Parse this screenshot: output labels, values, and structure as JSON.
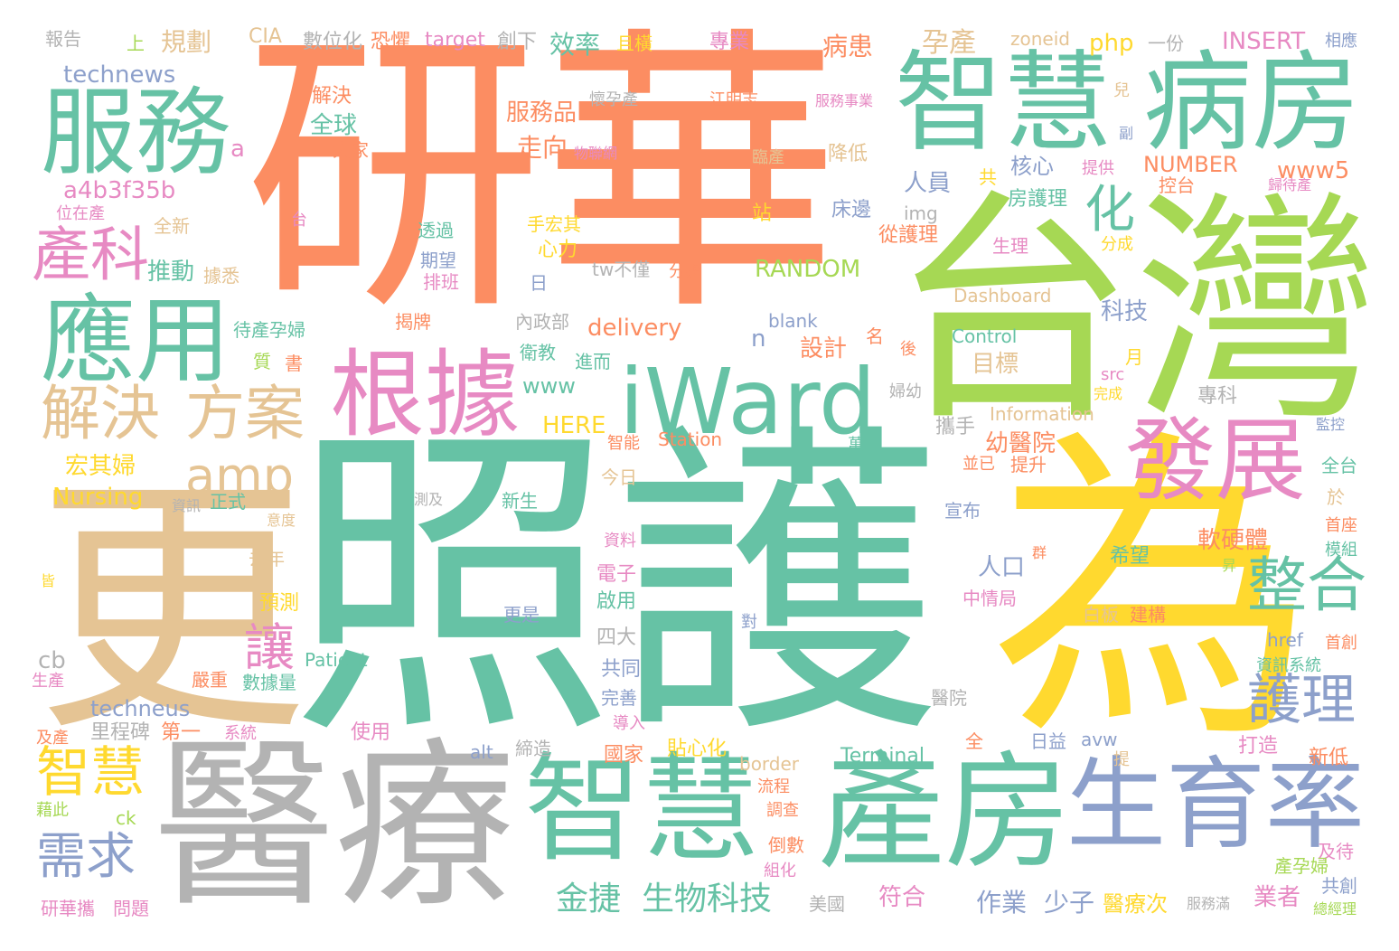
{
  "palette": {
    "orange": "#fc8d62",
    "green": "#66c2a5",
    "lime": "#a6d854",
    "yellow": "#ffd92f",
    "blue": "#8da0cb",
    "pink": "#e78ac3",
    "tan": "#e5c494",
    "gray": "#b3b3b3"
  },
  "words": {
    "w001": "研華",
    "w002": "照護",
    "w003": "台灣",
    "w004": "為",
    "w005": "更",
    "w006": "醫療",
    "w007": "智慧",
    "w008": "產房",
    "w009": "生育率",
    "w010": "智慧",
    "w011": "病房",
    "w012": "服務",
    "w013": "應用",
    "w014": "iWard",
    "w015": "根據",
    "w016": "發展",
    "w017": "解決",
    "w018": "方案",
    "w019": "產科",
    "w020": "amp",
    "w021": "化",
    "w022": "整合",
    "w023": "護理",
    "w024": "智慧",
    "w025": "需求",
    "w026": "金捷",
    "w027": "生物科技",
    "w028": "讓",
    "w029": "報告",
    "w030": "上",
    "w031": "規劃",
    "w032": "CIA",
    "w033": "數位化",
    "w034": "恐懼",
    "w035": "target",
    "w036": "創下",
    "w037": "效率",
    "w038": "且橫",
    "w039": "專業",
    "w040": "孕產",
    "w041": "病患",
    "w042": "zoneid",
    "w043": "php",
    "w044": "一份",
    "w045": "INSERT",
    "w046": "相應",
    "w047": "technews",
    "w048": "解決",
    "w049": "懷孕產",
    "w050": "江明志",
    "w051": "服務事業",
    "w052": "全球",
    "w053": "大家",
    "w054": "服務品",
    "w055": "兒",
    "w056": "a",
    "w057": "走向",
    "w058": "物聯網",
    "w059": "臨產",
    "w060": "降低",
    "w061": "副",
    "w062": "a4b3f35b",
    "w063": "核心",
    "w064": "NUMBER",
    "w065": "提供",
    "w066": "www5",
    "w067": "位在產",
    "w068": "人員",
    "w069": "共",
    "w070": "房護理",
    "w071": "控台",
    "w072": "歸待產",
    "w073": "台",
    "w074": "站",
    "w075": "床邊",
    "w076": "img",
    "w077": "全新",
    "w078": "透過",
    "w079": "手宏其",
    "w080": "心力",
    "w081": "從護理",
    "w082": "生理",
    "w083": "分成",
    "w084": "期望",
    "w085": "排班",
    "w086": "推動",
    "w087": "tw不僅",
    "w088": "分娩",
    "w089": "RANDOM",
    "w090": "據悉",
    "w091": "日",
    "w092": "Dashboard",
    "w093": "科技",
    "w094": "內政部",
    "w095": "揭牌",
    "w096": "blank",
    "w097": "待產孕婦",
    "w098": "delivery",
    "w099": "n",
    "w100": "名",
    "w101": "Control",
    "w102": "設計",
    "w103": "衛教",
    "w104": "進而",
    "w105": "後",
    "w106": "月",
    "w107": "src",
    "w108": "目標",
    "w109": "質",
    "w110": "書",
    "w111": "完成",
    "w112": "www",
    "w113": "婦幼",
    "w114": "專科",
    "w115": "Information",
    "w116": "HERE",
    "w117": "智能",
    "w118": "Station",
    "w119": "萬",
    "w120": "攜手",
    "w121": "監控",
    "w122": "宏其婦",
    "w123": "今日",
    "w124": "幼醫院",
    "w125": "並已",
    "w126": "提升",
    "w127": "全台",
    "w128": "Nursing",
    "w129": "正式",
    "w130": "資訊",
    "w131": "測及",
    "w132": "新生",
    "w133": "宣布",
    "w134": "於",
    "w135": "意度",
    "w136": "首座",
    "w137": "資料",
    "w138": "軟硬體",
    "w139": "模組",
    "w140": "去年",
    "w141": "電子",
    "w142": "群",
    "w143": "希望",
    "w144": "昇",
    "w145": "人口",
    "w146": "皆",
    "w147": "中情局",
    "w148": "啟用",
    "w149": "預測",
    "w150": "更是",
    "w151": "對",
    "w152": "白板",
    "w153": "建構",
    "w154": "四大",
    "w155": "href",
    "w156": "cb",
    "w157": "Patient",
    "w158": "首創",
    "w159": "生產",
    "w160": "嚴重",
    "w161": "數據量",
    "w162": "共同",
    "w163": "資訊系統",
    "w164": "完善",
    "w165": "醫院",
    "w166": "techneus",
    "w167": "里程碑",
    "w168": "第一",
    "w169": "系統",
    "w170": "使用",
    "w171": "導入",
    "w172": "avw",
    "w173": "及產",
    "w174": "alt",
    "w175": "締造",
    "w176": "國家",
    "w177": "貼心化",
    "w178": "Terminal",
    "w179": "全",
    "w180": "日益",
    "w181": "打造",
    "w182": "新低",
    "w183": "border",
    "w184": "提",
    "w185": "流程",
    "w186": "藉此",
    "w187": "ck",
    "w188": "調查",
    "w189": "倒數",
    "w190": "組化",
    "w191": "及待",
    "w192": "產孕婦",
    "w193": "共創",
    "w194": "研華攜",
    "w195": "問題",
    "w196": "美國",
    "w197": "符合",
    "w198": "作業",
    "w199": "少子",
    "w200": "醫療次",
    "w201": "業者",
    "w202": "服務滿",
    "w203": "總經理"
  }
}
